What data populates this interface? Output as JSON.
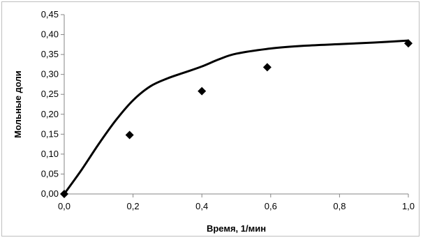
{
  "chart_data": {
    "type": "scatter",
    "title": "",
    "xlabel": "Время, 1/мин",
    "ylabel": "Мольные доли",
    "xlim": [
      0,
      1.0
    ],
    "ylim": [
      0,
      0.45
    ],
    "x_ticks": [
      "0,0",
      "0,2",
      "0,4",
      "0,6",
      "0,8",
      "1,0"
    ],
    "y_ticks": [
      "0,00",
      "0,05",
      "0,10",
      "0,15",
      "0,20",
      "0,25",
      "0,30",
      "0,35",
      "0,40",
      "0,45"
    ],
    "grid": false,
    "legend": "none",
    "series": [
      {
        "style": "line",
        "color": "#000000",
        "x": [
          0.0,
          0.05,
          0.1,
          0.15,
          0.2,
          0.25,
          0.3,
          0.35,
          0.4,
          0.45,
          0.5,
          0.6,
          0.7,
          0.8,
          0.9,
          1.0
        ],
        "y": [
          0.0,
          0.06,
          0.125,
          0.185,
          0.235,
          0.27,
          0.29,
          0.305,
          0.32,
          0.338,
          0.352,
          0.365,
          0.372,
          0.376,
          0.38,
          0.385
        ]
      },
      {
        "style": "markers",
        "marker": "diamond",
        "color": "#000000",
        "x": [
          0.0,
          0.19,
          0.4,
          0.59,
          1.0
        ],
        "y": [
          0.0,
          0.148,
          0.258,
          0.318,
          0.378
        ]
      }
    ]
  }
}
